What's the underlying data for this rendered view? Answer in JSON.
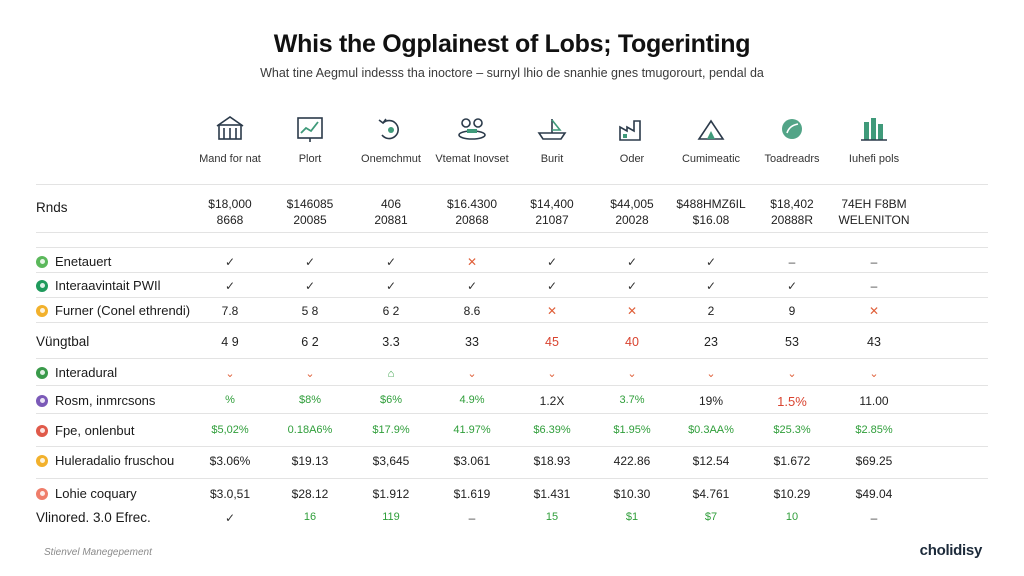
{
  "title": "Whis the Ogplainest of Lobs; Togerinting",
  "subtitle": "What tine Aegmul indesss tha inoctore – surnyl lhio de snanhie gnes tmugorourt, pendal da",
  "colors": {
    "check": "#333333",
    "cross": "#e0603a",
    "green_value": "#2f9e3a",
    "red_value": "#d9432f",
    "icon_stroke": "#2b3a4a",
    "icon_fill": "#3f9a7a"
  },
  "columns": [
    {
      "label": "Mand for nat",
      "icon": "building-icon"
    },
    {
      "label": "Plort",
      "icon": "chart-board-icon"
    },
    {
      "label": "Onemchmut",
      "icon": "refresh-cycle-icon"
    },
    {
      "label": "Vtemat Inovset",
      "icon": "people-meeting-icon"
    },
    {
      "label": "Burit",
      "icon": "boat-icon"
    },
    {
      "label": "Oder",
      "icon": "factory-icon"
    },
    {
      "label": "Cumimeatic",
      "icon": "tent-icon"
    },
    {
      "label": "Toadreadrs",
      "icon": "leaf-icon"
    },
    {
      "label": "Iuhefi pols",
      "icon": "towers-icon"
    }
  ],
  "rows": [
    {
      "label": "Rnds",
      "dot": "",
      "cells": [
        [
          "$18,000",
          "8668"
        ],
        [
          "$146085",
          "20085"
        ],
        [
          "406",
          "20881"
        ],
        [
          "$16.4300",
          "20868"
        ],
        [
          "$14,400",
          "21087"
        ],
        [
          "$44,005",
          "20028"
        ],
        [
          "$488HMZ6IL",
          "$16.08"
        ],
        [
          "$18,402",
          "20888R"
        ],
        [
          "74EH F8BM",
          "WELENITON"
        ]
      ]
    },
    {
      "label": "Enetauert",
      "dot": "#5bb85b",
      "cells": [
        "✓",
        "✓",
        "✓",
        "✕",
        "✓",
        "✓",
        "✓",
        "–",
        "–"
      ]
    },
    {
      "label": "Interaavintait PWIl",
      "dot": "#1f9a5c",
      "cells": [
        "✓",
        "✓",
        "✓",
        "✓",
        "✓",
        "✓",
        "✓",
        "✓",
        "–"
      ]
    },
    {
      "label": "Furner (Conel ethrendi)",
      "dot": "#f2b12c",
      "cells": [
        "7.8",
        "5 8",
        "6 2",
        "8.6",
        "✕",
        "✕",
        "2",
        "9",
        "✕"
      ]
    },
    {
      "label": "Vüngtbal",
      "dot": "",
      "cells": [
        "4 9",
        "6 2",
        "3.3",
        "33",
        "45",
        "40",
        "23",
        "53",
        "43"
      ]
    },
    {
      "label": "Interadural",
      "dot": "#3a9a4a",
      "cells": [
        "⌄",
        "⌄",
        "⌂",
        "⌄",
        "⌄",
        "⌄",
        "⌄",
        "⌄",
        "⌄"
      ]
    },
    {
      "label": "Rosm, inmrcsons",
      "dot": "#7b5ab8",
      "cells": [
        "%",
        "$8%",
        "$6%",
        "4.9%",
        "1.2X",
        "3.7%",
        "19%",
        "1.5%",
        "11.00"
      ]
    },
    {
      "label": "Fpe, onlenbut",
      "dot": "#e05a4a",
      "cells": [
        "$5,02%",
        "0.18A6%",
        "$17.9%",
        "41.97%",
        "$6.39%",
        "$1.95%",
        "$0.3AA%",
        "$25.3%",
        "$2.85%"
      ]
    },
    {
      "label": "Huleradalio fruschou",
      "dot": "#f2b12c",
      "cells": [
        "$3.06%",
        "$19.13",
        "$3,645",
        "$3.061",
        "$18.93",
        "422.86",
        "$12.54",
        "$1.672",
        "$69.25"
      ]
    },
    {
      "label": "Lohie coquary",
      "dot": "#ef7d6a",
      "cells": [
        "$3.0,51",
        "$28.12",
        "$1.912",
        "$1.619",
        "$1.431",
        "$10.30",
        "$4.761",
        "$10.29",
        "$49.04"
      ]
    },
    {
      "label": "Vlinored. 3.0 Efrec.",
      "dot": "",
      "cells": [
        "✓",
        "16",
        "119",
        "–",
        "15",
        "$1",
        "$7",
        "10",
        "–"
      ]
    }
  ],
  "footer": {
    "left": "Stienvel Manegepement",
    "brand": "cholidisy"
  }
}
